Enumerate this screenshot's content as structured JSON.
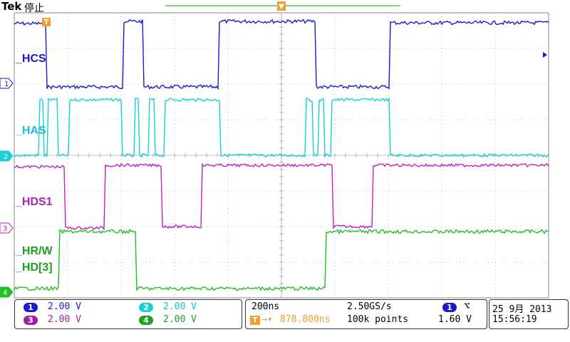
{
  "header": {
    "brand": "Tek",
    "status": "停止"
  },
  "colors": {
    "ch1": "#1a1ac8",
    "ch2": "#18d0d8",
    "ch3": "#c020c0",
    "ch4": "#20c020",
    "trigger": "#f0a030",
    "grid": "#8a8a8a"
  },
  "labels": {
    "hcs": "_HCS",
    "has": "_HAS",
    "hds1": "_HDS1",
    "hrw": "_HR/W",
    "hd3": "_HD[3]"
  },
  "channels": [
    {
      "num": "1",
      "scale": "2.00 V"
    },
    {
      "num": "2",
      "scale": "2.00 V"
    },
    {
      "num": "3",
      "scale": "2.00 V"
    },
    {
      "num": "4",
      "scale": "2.00 V"
    }
  ],
  "timebase": {
    "time_div": "200ns",
    "sample_rate": "2.50GS/s",
    "trigger_position": "878.800ns",
    "record_length": "100k points"
  },
  "trigger": {
    "source": "1",
    "slope": "falling-edge-icon",
    "level": "1.60 V"
  },
  "datetime": {
    "date": "25 9月  2013",
    "time": "15:56:19"
  }
}
